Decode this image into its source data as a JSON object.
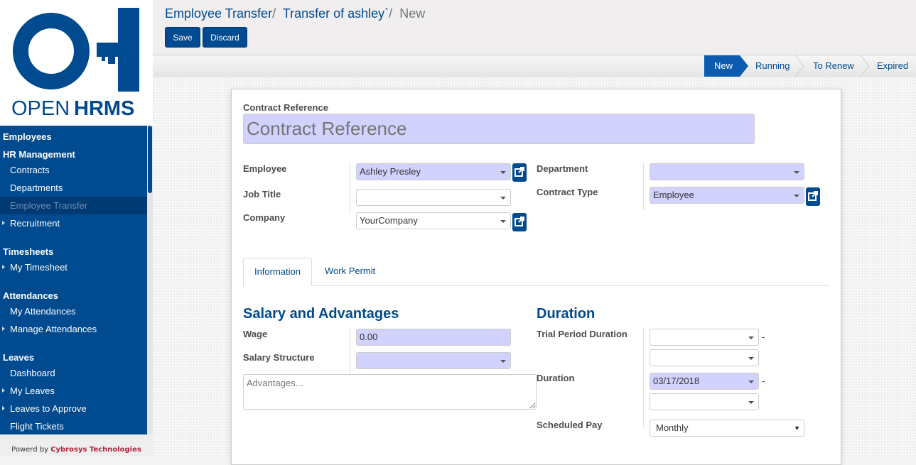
{
  "logo": {
    "text_light": "OPEN",
    "text_bold": "HRMS",
    "color": "#004a8f"
  },
  "menu": {
    "sections": [
      {
        "title": "Employees",
        "items": []
      },
      {
        "title": "HR Management",
        "items": [
          {
            "label": "Contracts"
          },
          {
            "label": "Departments"
          },
          {
            "label": "Employee Transfer",
            "active": true
          },
          {
            "label": "Recruitment",
            "caret": true
          }
        ]
      },
      {
        "title": "Timesheets",
        "items": [
          {
            "label": "My Timesheet",
            "caret": true
          }
        ]
      },
      {
        "title": "Attendances",
        "items": [
          {
            "label": "My Attendances"
          },
          {
            "label": "Manage Attendances",
            "caret": true
          }
        ]
      },
      {
        "title": "Leaves",
        "items": [
          {
            "label": "Dashboard"
          },
          {
            "label": "My Leaves",
            "caret": true
          },
          {
            "label": "Leaves to Approve",
            "caret": true
          },
          {
            "label": "Flight Tickets"
          }
        ]
      }
    ]
  },
  "powered": {
    "prefix": "Powerd by",
    "company": "Cybrosys Technologies"
  },
  "breadcrumb": {
    "items": [
      "Employee Transfer",
      "Transfer of ashley`"
    ],
    "sep": "/",
    "current": "New"
  },
  "toolbar": {
    "save": "Save",
    "discard": "Discard"
  },
  "status": {
    "stages": [
      "New",
      "Running",
      "To Renew",
      "Expired"
    ],
    "active": "New"
  },
  "form": {
    "contract_ref_label": "Contract Reference",
    "contract_ref_placeholder": "Contract Reference",
    "employee_label": "Employee",
    "employee_value": "Ashley Presley",
    "job_title_label": "Job Title",
    "job_title_value": "",
    "company_label": "Company",
    "company_value": "YourCompany",
    "department_label": "Department",
    "department_value": "",
    "contract_type_label": "Contract Type",
    "contract_type_value": "Employee",
    "tabs": [
      "Information",
      "Work Permit"
    ],
    "active_tab": "Information",
    "salary_heading": "Salary and Advantages",
    "wage_label": "Wage",
    "wage_value": "0.00",
    "salary_structure_label": "Salary Structure",
    "salary_structure_value": "",
    "advantages_placeholder": "Advantages...",
    "duration_heading": "Duration",
    "trial_label": "Trial Period Duration",
    "duration_label": "Duration",
    "duration_start": "03/17/2018",
    "scheduled_pay_label": "Scheduled Pay",
    "scheduled_pay_value": "Monthly",
    "dash": "-"
  }
}
